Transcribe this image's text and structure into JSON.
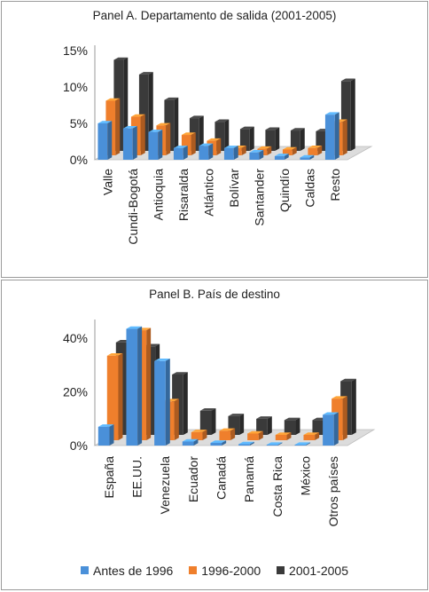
{
  "colors": {
    "antes": "#4a90d9",
    "mid": "#ef7f2c",
    "late": "#3a3a3a",
    "floor": "#dcdcdc"
  },
  "legend": [
    {
      "label": "Antes de 1996",
      "color": "#4a90d9"
    },
    {
      "label": "1996-2000",
      "color": "#ef7f2c"
    },
    {
      "label": "2001-2005",
      "color": "#3a3a3a"
    }
  ],
  "chart_data": [
    {
      "type": "bar",
      "title": "Panel A. Departamento de salida (2001-2005)",
      "categories": [
        "Valle",
        "Cundi-Bogotá",
        "Antioquia",
        "Risaralda",
        "Atlántico",
        "Bolívar",
        "Santander",
        "Quindío",
        "Caldas",
        "Resto"
      ],
      "ylim": [
        0,
        15
      ],
      "ytick_labels": [
        "0%",
        "5%",
        "10%",
        "15%"
      ],
      "series": [
        {
          "name": "Antes de 1996",
          "values": [
            5.0,
            4.3,
            3.8,
            1.6,
            1.9,
            1.6,
            1.0,
            0.5,
            0.3,
            6.2
          ]
        },
        {
          "name": "1996-2000",
          "values": [
            7.5,
            5.3,
            4.1,
            2.8,
            2.0,
            1.0,
            0.9,
            0.8,
            1.0,
            4.6
          ]
        },
        {
          "name": "2001-2005",
          "values": [
            12.5,
            10.5,
            7.0,
            4.5,
            4.0,
            3.0,
            2.9,
            2.8,
            2.7,
            9.6
          ]
        }
      ],
      "grid": false,
      "legend": "none"
    },
    {
      "type": "bar",
      "title": "Panel B. País de destino",
      "categories": [
        "España",
        "EE.UU.",
        "Venezuela",
        "Ecuador",
        "Canadá",
        "Panamá",
        "Costa Rica",
        "México",
        "Otros países"
      ],
      "ylim": [
        0,
        45
      ],
      "ytick_labels": [
        "0%",
        "20%",
        "40%"
      ],
      "series": [
        {
          "name": "Antes de 1996",
          "values": [
            7.0,
            43.5,
            31.5,
            1.5,
            1.0,
            0.5,
            0.3,
            0.3,
            11.5
          ]
        },
        {
          "name": "1996-2000",
          "values": [
            31.5,
            41.0,
            14.5,
            3.0,
            3.5,
            2.5,
            2.0,
            2.0,
            15.5
          ]
        },
        {
          "name": "2001-2005",
          "values": [
            34.5,
            33.0,
            22.5,
            9.0,
            7.0,
            6.0,
            5.5,
            5.5,
            20.0
          ]
        }
      ],
      "grid": false,
      "legend": "bottom"
    }
  ]
}
